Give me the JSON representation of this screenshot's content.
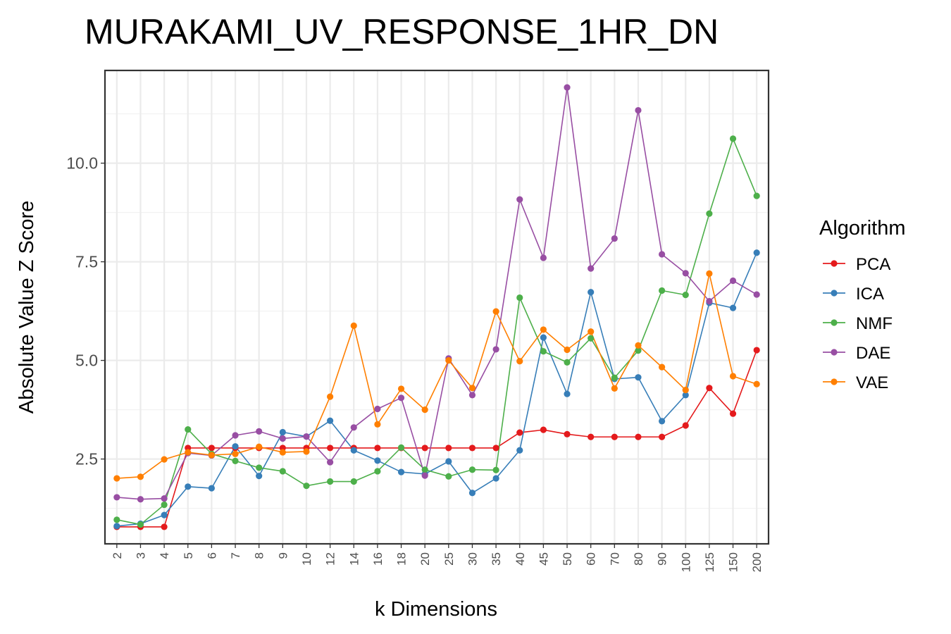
{
  "chart_data": {
    "type": "line",
    "title": "MURAKAMI_UV_RESPONSE_1HR_DN",
    "xlabel": "k Dimensions",
    "ylabel": "Absolute Value Z Score",
    "categories": [
      "2",
      "3",
      "4",
      "5",
      "6",
      "7",
      "8",
      "9",
      "10",
      "12",
      "14",
      "16",
      "18",
      "20",
      "25",
      "30",
      "35",
      "40",
      "45",
      "50",
      "60",
      "70",
      "80",
      "90",
      "100",
      "125",
      "150",
      "200"
    ],
    "yticks": [
      2.5,
      5.0,
      7.5,
      10.0
    ],
    "ytick_labels": [
      "2.5",
      "5.0",
      "7.5",
      "10.0"
    ],
    "ylim": [
      0.35,
      12.35
    ],
    "grid": true,
    "legend": {
      "title": "Algorithm",
      "placement": "right"
    },
    "series": [
      {
        "name": "PCA",
        "color": "#e41a1c",
        "values": [
          0.78,
          0.78,
          0.78,
          2.78,
          2.78,
          2.78,
          2.78,
          2.78,
          2.78,
          2.78,
          2.78,
          2.78,
          2.78,
          2.78,
          2.78,
          2.78,
          2.78,
          3.17,
          3.24,
          3.13,
          3.06,
          3.06,
          3.06,
          3.06,
          3.35,
          4.3,
          3.65,
          5.26
        ]
      },
      {
        "name": "ICA",
        "color": "#377eb8",
        "values": [
          0.8,
          0.86,
          1.08,
          1.8,
          1.76,
          2.82,
          2.07,
          3.18,
          3.07,
          3.47,
          2.72,
          2.46,
          2.17,
          2.12,
          2.44,
          1.64,
          2.01,
          2.72,
          5.58,
          4.15,
          6.73,
          4.53,
          4.57,
          3.46,
          4.12,
          6.46,
          6.33,
          7.73
        ]
      },
      {
        "name": "NMF",
        "color": "#4daf4a",
        "values": [
          0.96,
          0.84,
          1.34,
          3.25,
          2.63,
          2.45,
          2.28,
          2.19,
          1.82,
          1.93,
          1.93,
          2.19,
          2.79,
          2.23,
          2.06,
          2.23,
          2.22,
          6.59,
          5.23,
          4.95,
          5.56,
          4.56,
          5.25,
          6.77,
          6.66,
          8.72,
          10.62,
          9.17
        ]
      },
      {
        "name": "DAE",
        "color": "#984ea3",
        "values": [
          1.53,
          1.48,
          1.5,
          2.65,
          2.59,
          3.1,
          3.2,
          3.02,
          3.07,
          2.42,
          3.3,
          3.77,
          4.05,
          2.08,
          5.05,
          4.12,
          5.28,
          9.08,
          7.6,
          11.92,
          7.33,
          8.09,
          11.34,
          7.69,
          7.21,
          6.5,
          7.02,
          6.67
        ]
      },
      {
        "name": "VAE",
        "color": "#ff7f00",
        "values": [
          2.01,
          2.05,
          2.49,
          2.67,
          2.6,
          2.63,
          2.81,
          2.67,
          2.69,
          4.08,
          5.88,
          3.38,
          4.28,
          3.75,
          5.0,
          4.3,
          6.24,
          4.98,
          5.78,
          5.27,
          5.73,
          4.29,
          5.38,
          4.83,
          4.25,
          7.2,
          4.6,
          4.4
        ]
      }
    ]
  }
}
